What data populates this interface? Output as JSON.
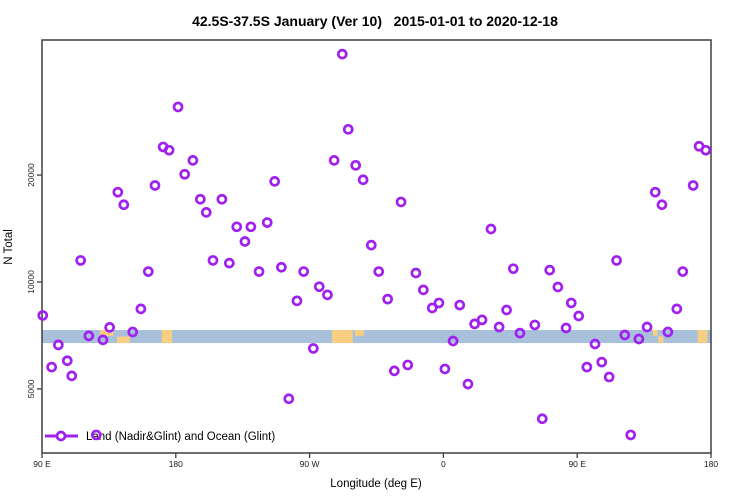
{
  "chart_data": {
    "type": "scatter",
    "title": "42.5S-37.5S January (Ver 10)   2015-01-01 to 2020-12-18",
    "xlabel": "Longitude (deg E)",
    "ylabel": "N Total",
    "marker_color": "#A020F0",
    "axis_color": "#3f3f3f",
    "x_axis": {
      "min": 90,
      "max": 540,
      "note": "longitude increases eastward and wraps past 180",
      "ticks": [
        {
          "v": 90,
          "label": "90 E"
        },
        {
          "v": 180,
          "label": "180"
        },
        {
          "v": 270,
          "label": "90 W"
        },
        {
          "v": 360,
          "label": "0"
        },
        {
          "v": 450,
          "label": "90 E"
        },
        {
          "v": 540,
          "label": "180"
        }
      ]
    },
    "y_axis": {
      "scale": "log",
      "min": 3300,
      "max": 48000,
      "ticks": [
        {
          "v": 5000,
          "label": "5000"
        },
        {
          "v": 10000,
          "label": "10000"
        },
        {
          "v": 20000,
          "label": "20000"
        }
      ]
    },
    "legend": {
      "label": "Land (Nadir&Glint) and Ocean (Glint)"
    },
    "map_strip": {
      "ocean_color": "#a9c0db",
      "land_color": "#f8cf82",
      "y_top_value": 7325,
      "y_bottom_value": 6730,
      "land_segments": [
        {
          "from": 129,
          "to": 138,
          "part": "top"
        },
        {
          "from": 140.5,
          "to": 149,
          "part": "bottom"
        },
        {
          "from": 170.5,
          "to": 177.5,
          "part": "full"
        },
        {
          "from": 285,
          "to": 299,
          "part": "full"
        },
        {
          "from": 300.5,
          "to": 306.5,
          "part": "top"
        },
        {
          "from": 501,
          "to": 504,
          "part": "top"
        },
        {
          "from": 504.5,
          "to": 508,
          "part": "bottom"
        },
        {
          "from": 531,
          "to": 537.5,
          "part": "full"
        }
      ]
    },
    "points": [
      [
        292,
        43800
      ],
      [
        181.5,
        31100
      ],
      [
        296,
        26900
      ],
      [
        171.5,
        24000
      ],
      [
        175.5,
        23500
      ],
      [
        191.5,
        22000
      ],
      [
        286.5,
        22000
      ],
      [
        301,
        21300
      ],
      [
        186,
        20100
      ],
      [
        306,
        19400
      ],
      [
        166,
        18700
      ],
      [
        246.5,
        19200
      ],
      [
        141,
        17900
      ],
      [
        145,
        16500
      ],
      [
        196.5,
        17100
      ],
      [
        211,
        17100
      ],
      [
        200.5,
        15700
      ],
      [
        221,
        14300
      ],
      [
        230.5,
        14300
      ],
      [
        241.5,
        14700
      ],
      [
        226.5,
        13000
      ],
      [
        311.5,
        12700
      ],
      [
        532,
        24100
      ],
      [
        536.5,
        23500
      ],
      [
        528,
        18700
      ],
      [
        502.5,
        17900
      ],
      [
        507,
        16500
      ],
      [
        331.5,
        16800
      ],
      [
        392,
        14100
      ],
      [
        116,
        11500
      ],
      [
        161.5,
        10700
      ],
      [
        205,
        11500
      ],
      [
        216,
        11300
      ],
      [
        236,
        10700
      ],
      [
        251,
        11000
      ],
      [
        266,
        10700
      ],
      [
        276.5,
        9700
      ],
      [
        282,
        9200
      ],
      [
        261.5,
        8850
      ],
      [
        316.5,
        10700
      ],
      [
        156.5,
        8400
      ],
      [
        90.5,
        8050
      ],
      [
        135.5,
        7450
      ],
      [
        151,
        7230
      ],
      [
        121.5,
        7050
      ],
      [
        131,
        6870
      ],
      [
        272.5,
        6500
      ],
      [
        101,
        6650
      ],
      [
        107,
        6000
      ],
      [
        96.5,
        5760
      ],
      [
        110,
        5440
      ],
      [
        256,
        4690
      ],
      [
        126.5,
        3710
      ],
      [
        341.5,
        10600
      ],
      [
        346.5,
        9500
      ],
      [
        322.5,
        8950
      ],
      [
        352.5,
        8450
      ],
      [
        357,
        8730
      ],
      [
        371,
        8610
      ],
      [
        407,
        10900
      ],
      [
        402.5,
        8340
      ],
      [
        381,
        7620
      ],
      [
        386,
        7820
      ],
      [
        397.5,
        7470
      ],
      [
        411.5,
        7180
      ],
      [
        421.5,
        7570
      ],
      [
        431.5,
        10800
      ],
      [
        437,
        9680
      ],
      [
        446,
        8730
      ],
      [
        451,
        8020
      ],
      [
        442.5,
        7420
      ],
      [
        476.5,
        11500
      ],
      [
        462,
        6690
      ],
      [
        456.5,
        5760
      ],
      [
        466.5,
        5950
      ],
      [
        471.5,
        5400
      ],
      [
        482,
        7090
      ],
      [
        491.5,
        6910
      ],
      [
        497,
        7470
      ],
      [
        511,
        7230
      ],
      [
        521,
        10700
      ],
      [
        517,
        8400
      ],
      [
        327,
        5620
      ],
      [
        336,
        5840
      ],
      [
        361,
        5690
      ],
      [
        376.5,
        5160
      ],
      [
        426.5,
        4120
      ],
      [
        486,
        3710
      ],
      [
        366.5,
        6820
      ]
    ]
  }
}
